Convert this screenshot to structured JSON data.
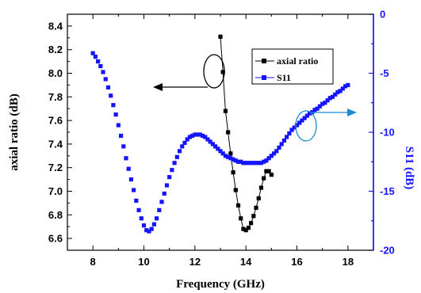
{
  "chart_data": {
    "type": "scatter",
    "xlabel": "Frequency (GHz)",
    "ylabel_left": "axial ratio (dB)",
    "ylabel_right": "S11 (dB)",
    "xlim": [
      7,
      19
    ],
    "ylim_left": [
      6.5,
      8.5
    ],
    "ylim_right": [
      -20,
      0
    ],
    "x_ticks": [
      "8",
      "10",
      "12",
      "14",
      "16",
      "18"
    ],
    "y_left_ticks": [
      "6.6",
      "6.8",
      "7.0",
      "7.2",
      "7.4",
      "7.6",
      "7.8",
      "8.0",
      "8.2",
      "8.4"
    ],
    "y_right_ticks": [
      "0",
      "-5",
      "-10",
      "-15",
      "-20"
    ],
    "legend": {
      "placement": "top-right",
      "entries": [
        "axial ratio",
        "S11"
      ]
    },
    "colors": {
      "axial_ratio": "#000000",
      "s11": "#1414ff",
      "right_axis": "#1414ff",
      "annotation": "#1a8ad4"
    },
    "series": [
      {
        "name": "axial ratio",
        "axis": "left",
        "x": [
          13.0,
          13.1,
          13.2,
          13.3,
          13.4,
          13.5,
          13.6,
          13.7,
          13.8,
          13.9,
          14.0,
          14.1,
          14.2,
          14.3,
          14.4,
          14.5,
          14.6,
          14.7,
          14.8,
          14.9,
          15.0
        ],
        "y": [
          8.31,
          8.01,
          7.68,
          7.5,
          7.32,
          7.16,
          7.01,
          6.88,
          6.77,
          6.68,
          6.67,
          6.69,
          6.73,
          6.79,
          6.86,
          6.94,
          7.03,
          7.11,
          7.17,
          7.17,
          7.14
        ]
      },
      {
        "name": "S11",
        "axis": "right",
        "x_start": 8.0,
        "x_step": 0.1,
        "y": [
          -3.3,
          -3.6,
          -4.0,
          -4.4,
          -4.9,
          -5.5,
          -6.2,
          -6.9,
          -7.7,
          -8.5,
          -9.4,
          -10.3,
          -11.2,
          -12.2,
          -13.1,
          -14.0,
          -14.9,
          -15.8,
          -16.6,
          -17.3,
          -17.9,
          -18.3,
          -18.4,
          -18.2,
          -17.8,
          -17.3,
          -16.6,
          -15.9,
          -15.2,
          -14.5,
          -13.8,
          -13.2,
          -12.6,
          -12.1,
          -11.6,
          -11.2,
          -10.9,
          -10.6,
          -10.4,
          -10.3,
          -10.2,
          -10.2,
          -10.2,
          -10.3,
          -10.4,
          -10.6,
          -10.8,
          -11.0,
          -11.2,
          -11.4,
          -11.6,
          -11.8,
          -12.0,
          -12.1,
          -12.2,
          -12.3,
          -12.4,
          -12.5,
          -12.5,
          -12.6,
          -12.6,
          -12.6,
          -12.6,
          -12.6,
          -12.6,
          -12.6,
          -12.6,
          -12.5,
          -12.4,
          -12.2,
          -12.0,
          -11.8,
          -11.6,
          -11.3,
          -11.0,
          -10.7,
          -10.4,
          -10.1,
          -9.8,
          -9.6,
          -9.4,
          -9.2,
          -9.0,
          -8.8,
          -8.6,
          -8.4,
          -8.3,
          -8.1,
          -8.0,
          -7.8,
          -7.6,
          -7.5,
          -7.3,
          -7.1,
          -7.0,
          -6.8,
          -6.6,
          -6.5,
          -6.3,
          -6.1,
          -6.0
        ]
      }
    ]
  }
}
